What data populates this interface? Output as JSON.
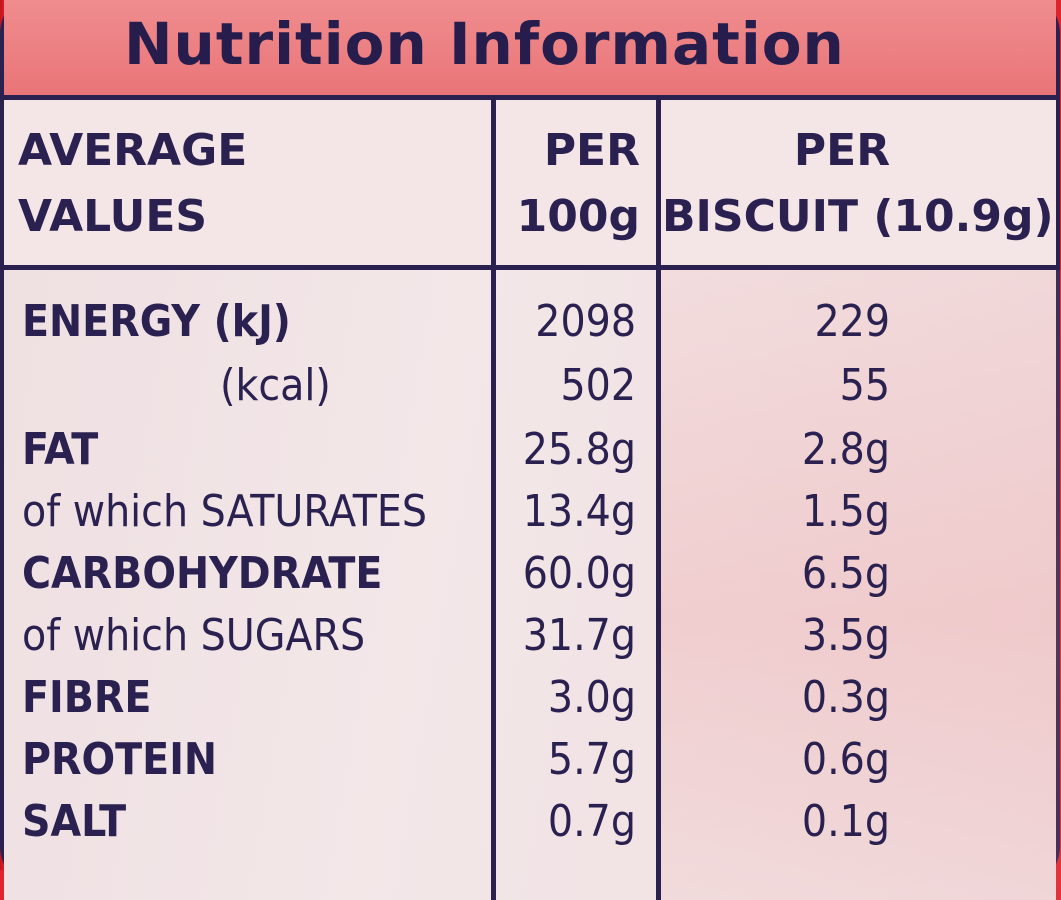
{
  "title": "Nutrition Information",
  "header": {
    "col1_line1": "AVERAGE",
    "col1_line2": "VALUES",
    "col2_line1": "PER",
    "col2_line2": "100g",
    "col3_line1": "PER",
    "col3_line2": "BISCUIT (10.9g)"
  },
  "rows": [
    {
      "label": "ENERGY (kJ)",
      "per_100g": "2098",
      "per_biscuit": "229"
    },
    {
      "label": "(kcal)",
      "per_100g": "502",
      "per_biscuit": "55"
    },
    {
      "label": "FAT",
      "per_100g": "25.8g",
      "per_biscuit": "2.8g"
    },
    {
      "label": "of which SATURATES",
      "per_100g": "13.4g",
      "per_biscuit": "1.5g"
    },
    {
      "label": "CARBOHYDRATE",
      "per_100g": "60.0g",
      "per_biscuit": "6.5g"
    },
    {
      "label": "of which SUGARS",
      "per_100g": "31.7g",
      "per_biscuit": "3.5g"
    },
    {
      "label": "FIBRE",
      "per_100g": "3.0g",
      "per_biscuit": "0.3g"
    },
    {
      "label": "PROTEIN",
      "per_100g": "5.7g",
      "per_biscuit": "0.6g"
    },
    {
      "label": "SALT",
      "per_100g": "0.7g",
      "per_biscuit": "0.1g"
    }
  ],
  "colors": {
    "ink": "#2a2150",
    "wrapper_red": "#e1242c",
    "title_band": "#ec7f82",
    "panel": "#f1e2e4"
  }
}
